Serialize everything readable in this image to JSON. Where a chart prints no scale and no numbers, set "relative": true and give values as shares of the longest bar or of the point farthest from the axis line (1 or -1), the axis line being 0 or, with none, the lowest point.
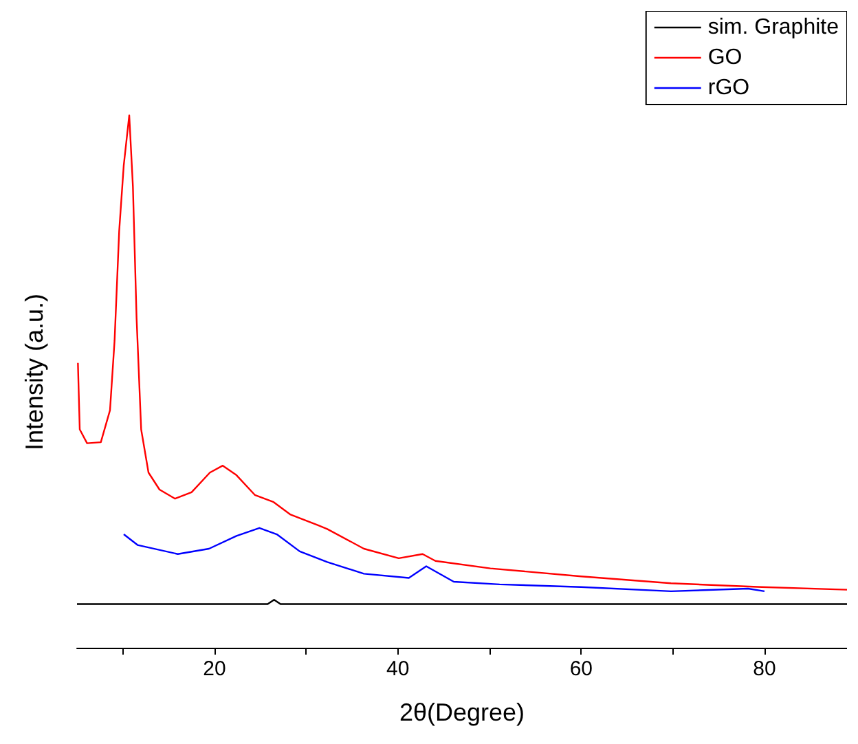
{
  "chart_data": {
    "type": "line",
    "relative": true,
    "xlabel": "2θ(Degree)",
    "ylabel": "Intensity (a.u.)",
    "xlim": [
      5,
      89
    ],
    "xticks": [
      {
        "value": 10,
        "label": null
      },
      20,
      {
        "value": 30,
        "label": null
      },
      40,
      {
        "value": 50,
        "label": null
      },
      60,
      {
        "value": 70,
        "label": null
      },
      80
    ],
    "grid": false,
    "legend": "top right",
    "marker": "none",
    "line_style": "solid",
    "series": [
      {
        "name": "sim. Graphite",
        "color": "#000000",
        "x": [
          5,
          25.8,
          26.5,
          27.2,
          89
        ],
        "values": [
          0.082,
          0.082,
          0.09,
          0.082,
          0.082
        ]
      },
      {
        "name": "GO",
        "color": "#ff0000",
        "x": [
          5.1,
          5.3,
          6.1,
          7.6,
          8.6,
          9.1,
          9.6,
          10.1,
          10.7,
          11.1,
          11.5,
          12.0,
          12.8,
          14.0,
          15.7,
          17.5,
          19.5,
          20.9,
          22.4,
          24.4,
          26.4,
          28.3,
          31.3,
          32.3,
          36.3,
          40.1,
          42.7,
          44.1,
          50.1,
          60,
          69.8,
          79.7,
          89
        ],
        "values": [
          0.535,
          0.41,
          0.384,
          0.386,
          0.446,
          0.577,
          0.782,
          0.906,
          1,
          0.866,
          0.619,
          0.41,
          0.329,
          0.297,
          0.28,
          0.292,
          0.329,
          0.342,
          0.324,
          0.287,
          0.274,
          0.25,
          0.23,
          0.223,
          0.186,
          0.168,
          0.176,
          0.163,
          0.149,
          0.134,
          0.121,
          0.114,
          0.109
        ]
      },
      {
        "name": "rGO",
        "color": "#0000ff",
        "x": [
          10.1,
          11.6,
          16.0,
          19.4,
          22.4,
          24.9,
          26.8,
          29.3,
          32.3,
          36.3,
          41.2,
          43.1,
          46.1,
          51.1,
          60,
          69.8,
          78.2,
          80
        ],
        "values": [
          0.213,
          0.193,
          0.176,
          0.186,
          0.21,
          0.225,
          0.213,
          0.181,
          0.161,
          0.139,
          0.131,
          0.153,
          0.124,
          0.119,
          0.114,
          0.106,
          0.111,
          0.106
        ]
      }
    ]
  }
}
